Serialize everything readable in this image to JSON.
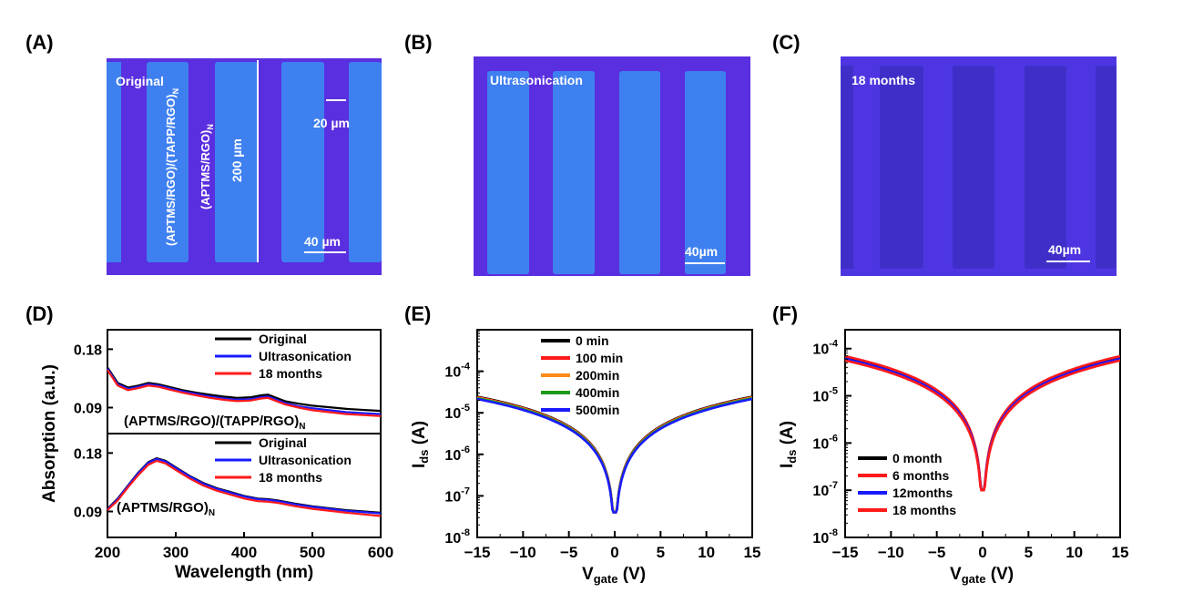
{
  "colors": {
    "panel_bg": "#5a2fe0",
    "strip_fill": "#3f80f0",
    "panel_c_bg": "#4d36e2",
    "panel_c_strip": "#3f2fc8",
    "black": "#000000",
    "red": "#ff1a1a",
    "blue": "#1a1aff",
    "orange": "#ff8c1a",
    "green": "#1a9a1a",
    "white": "#ffffff"
  },
  "panel_labels": {
    "a": "(A)",
    "b": "(B)",
    "c": "(C)",
    "d": "(D)",
    "e": "(E)",
    "f": "(F)"
  },
  "micrographs": {
    "a": {
      "condition": "Original",
      "layer_labels": [
        "(APTMS/RGO)/(TAPP/RGO)",
        "(APTMS/RGO)"
      ],
      "layer_subscript": "N",
      "gap_label": "200 µm",
      "small_scale": "20 µm",
      "scale_bar": "40 µm"
    },
    "b": {
      "condition": "Ultrasonication",
      "scale_bar": "40µm"
    },
    "c": {
      "condition": "18 months",
      "scale_bar": "40µm"
    }
  },
  "chart_data": [
    {
      "panel": "D",
      "type": "line",
      "xlabel": "Wavelength (nm)",
      "ylabel": "Absorption (a.u.)",
      "xlim": [
        200,
        600
      ],
      "xticks": [
        200,
        300,
        400,
        500,
        600
      ],
      "subplots": [
        {
          "label": "(APTMS/RGO)/(TAPP/RGO)",
          "label_subscript": "N",
          "ylim": [
            0.05,
            0.21
          ],
          "yticks": [
            "0.18",
            "0.09"
          ],
          "ytick_values": [
            0.18,
            0.09
          ],
          "legend": [
            "Original",
            "Ultrasonication",
            "18 months"
          ],
          "x": [
            200,
            215,
            230,
            245,
            260,
            275,
            290,
            310,
            330,
            350,
            370,
            390,
            410,
            425,
            435,
            445,
            460,
            480,
            500,
            550,
            600
          ],
          "series": [
            {
              "name": "Original",
              "values": [
                0.152,
                0.128,
                0.121,
                0.124,
                0.128,
                0.126,
                0.122,
                0.117,
                0.113,
                0.11,
                0.107,
                0.105,
                0.106,
                0.109,
                0.11,
                0.106,
                0.1,
                0.096,
                0.093,
                0.088,
                0.085
              ]
            },
            {
              "name": "Ultrasonication",
              "values": [
                0.15,
                0.126,
                0.119,
                0.122,
                0.126,
                0.124,
                0.12,
                0.115,
                0.111,
                0.107,
                0.104,
                0.102,
                0.103,
                0.106,
                0.107,
                0.103,
                0.097,
                0.092,
                0.089,
                0.083,
                0.08
              ]
            },
            {
              "name": "18 months",
              "values": [
                0.148,
                0.124,
                0.117,
                0.12,
                0.124,
                0.122,
                0.118,
                0.113,
                0.109,
                0.105,
                0.102,
                0.1,
                0.101,
                0.104,
                0.105,
                0.101,
                0.095,
                0.09,
                0.086,
                0.08,
                0.077
              ]
            }
          ]
        },
        {
          "label": "(APTMS/RGO)",
          "label_subscript": "N",
          "ylim": [
            0.05,
            0.21
          ],
          "yticks": [
            "0.18",
            "0.09"
          ],
          "ytick_values": [
            0.18,
            0.09
          ],
          "legend": [
            "Original",
            "Ultrasonication",
            "18 months"
          ],
          "x": [
            200,
            215,
            230,
            245,
            260,
            272,
            285,
            300,
            320,
            340,
            360,
            380,
            400,
            420,
            435,
            450,
            475,
            500,
            550,
            600
          ],
          "series": [
            {
              "name": "Original",
              "values": [
                0.094,
                0.11,
                0.13,
                0.15,
                0.166,
                0.172,
                0.168,
                0.158,
                0.145,
                0.134,
                0.126,
                0.12,
                0.114,
                0.11,
                0.109,
                0.107,
                0.102,
                0.098,
                0.092,
                0.088
              ]
            },
            {
              "name": "Ultrasonication",
              "values": [
                0.093,
                0.109,
                0.129,
                0.149,
                0.165,
                0.171,
                0.167,
                0.157,
                0.144,
                0.133,
                0.125,
                0.119,
                0.113,
                0.109,
                0.108,
                0.106,
                0.101,
                0.097,
                0.091,
                0.087
              ]
            },
            {
              "name": "18 months",
              "values": [
                0.092,
                0.107,
                0.127,
                0.146,
                0.162,
                0.168,
                0.164,
                0.154,
                0.141,
                0.13,
                0.122,
                0.116,
                0.11,
                0.106,
                0.105,
                0.103,
                0.098,
                0.094,
                0.088,
                0.083
              ]
            }
          ]
        }
      ]
    },
    {
      "panel": "E",
      "type": "line",
      "xlabel": "V",
      "xlabel_sub": "gate",
      "xlabel_unit": "(V)",
      "ylabel": "I",
      "ylabel_sub": "ds",
      "ylabel_unit": "(A)",
      "xlim": [
        -15,
        15
      ],
      "xticks": [
        -15,
        -10,
        -5,
        0,
        5,
        10,
        15
      ],
      "ylog": true,
      "ylim_exp": [
        -8,
        -3
      ],
      "yticks_exp": [
        -8,
        -7,
        -6,
        -5,
        -4
      ],
      "legend": [
        "0 min",
        "100 min",
        "200min",
        "400min",
        "500min"
      ],
      "series": [
        {
          "name": "0 min",
          "scale": 2.45e-05,
          "min": 4e-08
        },
        {
          "name": "100 min",
          "scale": 2.38e-05,
          "min": 4e-08
        },
        {
          "name": "200min",
          "scale": 2.32e-05,
          "min": 4e-08
        },
        {
          "name": "400min",
          "scale": 2.26e-05,
          "min": 4e-08
        },
        {
          "name": "500min",
          "scale": 2.15e-05,
          "min": 4e-08
        }
      ]
    },
    {
      "panel": "F",
      "type": "line",
      "xlabel": "V",
      "xlabel_sub": "gate",
      "xlabel_unit": "(V)",
      "ylabel": "I",
      "ylabel_sub": "ds",
      "ylabel_unit": "(A)",
      "xlim": [
        -15,
        15
      ],
      "xticks": [
        -15,
        -10,
        -5,
        0,
        5,
        10,
        15
      ],
      "ylog": true,
      "ylim_exp": [
        -8,
        -3.6
      ],
      "yticks_exp": [
        -8,
        -7,
        -6,
        -5,
        -4
      ],
      "legend": [
        "0 month",
        "6 months",
        "12months",
        "18 months"
      ],
      "series": [
        {
          "name": "0 month",
          "scale": 6.4e-05,
          "min": 1e-07
        },
        {
          "name": "6 months",
          "scale": 6.9e-05,
          "min": 1e-07
        },
        {
          "name": "12months",
          "scale": 6.1e-05,
          "min": 1e-07
        },
        {
          "name": "18 months",
          "scale": 5.6e-05,
          "min": 1e-07
        }
      ]
    }
  ]
}
